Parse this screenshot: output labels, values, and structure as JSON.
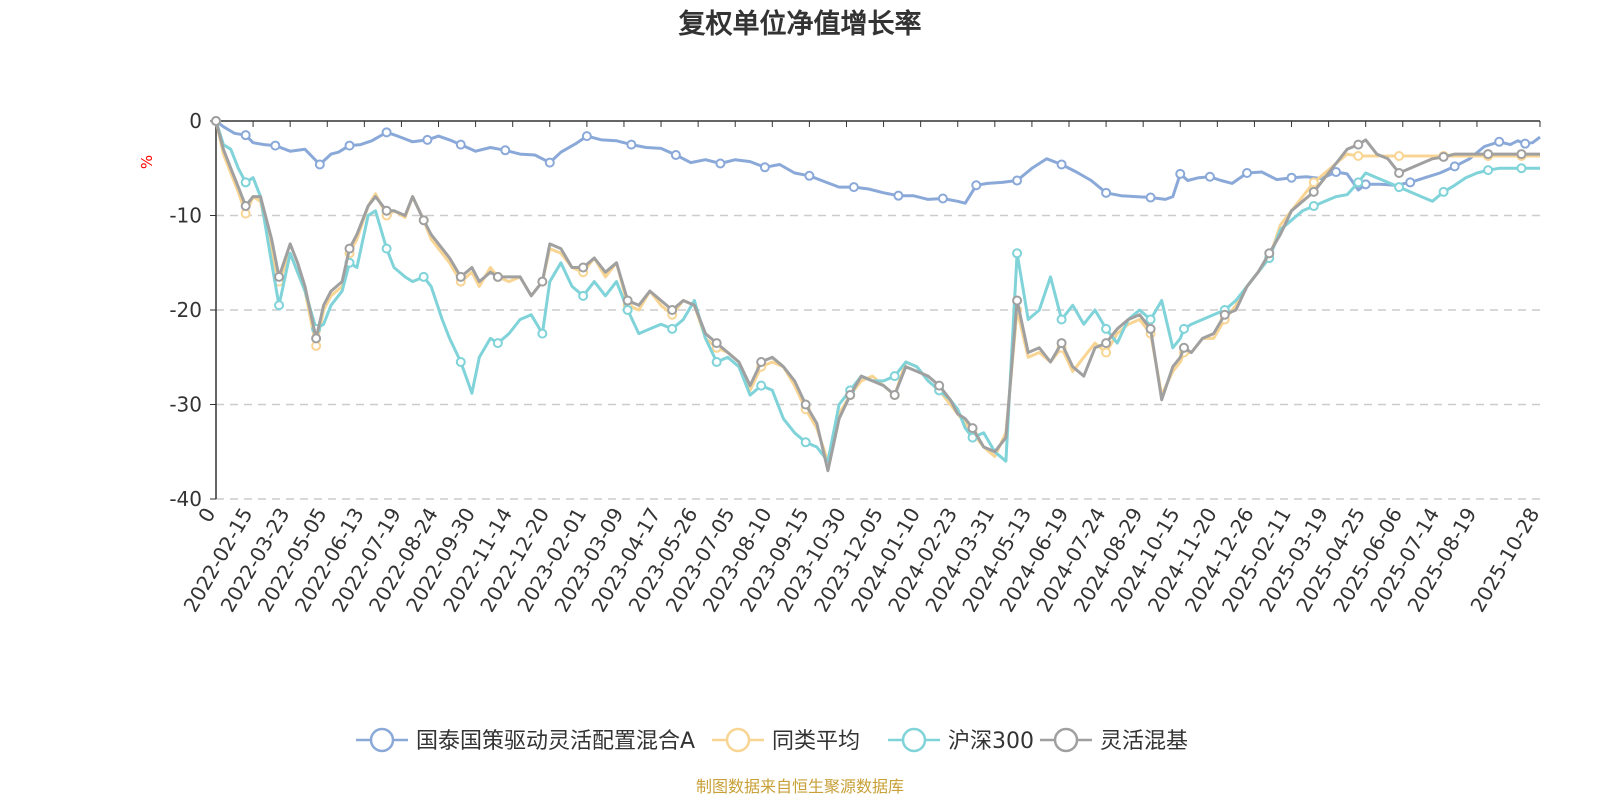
{
  "chart_data": {
    "type": "line",
    "title": "复权单位净值增长率",
    "ylabel": "%",
    "xlabel": "",
    "ylim": [
      -40,
      0
    ],
    "yticks": [
      0,
      -10,
      -20,
      -30,
      -40
    ],
    "grid": "horizontal dashed",
    "legend_position": "bottom-center",
    "source": "制图数据来自恒生聚源数据库",
    "colors": {
      "title": "#333333",
      "axis": "#333333",
      "grid": "#cccccc",
      "unit": "#ff0000",
      "source": "#c8a038"
    },
    "x_tick_labels": [
      "0",
      "2022-02-15",
      "2022-03-23",
      "2022-05-05",
      "2022-06-13",
      "2022-07-19",
      "2022-08-24",
      "2022-09-30",
      "2022-11-14",
      "2022-12-20",
      "2023-02-01",
      "2023-03-09",
      "2023-04-17",
      "2023-05-26",
      "2023-07-05",
      "2023-08-10",
      "2023-09-15",
      "2023-10-30",
      "2023-12-05",
      "2024-01-10",
      "2024-02-23",
      "2024-03-31",
      "2024-05-13",
      "2024-06-19",
      "2024-07-24",
      "2024-08-29",
      "2024-10-15",
      "2024-11-20",
      "2024-12-26",
      "2025-02-11",
      "2025-03-19",
      "2025-04-25",
      "2025-06-06",
      "2025-07-14",
      "2025-08-19",
      "2025-10-28"
    ],
    "x_tick_positions": [
      0,
      1,
      2,
      3,
      4,
      5,
      6,
      7,
      8,
      9,
      10,
      11,
      12,
      13,
      14,
      15,
      16,
      17,
      18,
      19,
      20,
      21,
      22,
      23,
      24,
      25,
      26,
      27,
      28,
      29,
      30,
      31,
      32,
      33,
      34,
      35.7
    ],
    "x_max": 35.7,
    "series": [
      {
        "name": "国泰国策驱动灵活配置混合A",
        "color": "#8aa9d9",
        "x": [
          0,
          0.2,
          0.5,
          0.8,
          1.0,
          1.3,
          1.6,
          2.0,
          2.4,
          2.8,
          3.1,
          3.3,
          3.6,
          3.9,
          4.2,
          4.6,
          4.9,
          5.3,
          5.7,
          6.0,
          6.3,
          6.6,
          7.0,
          7.4,
          7.8,
          8.2,
          8.6,
          9.0,
          9.3,
          9.7,
          10.0,
          10.4,
          10.8,
          11.2,
          11.6,
          12.0,
          12.4,
          12.8,
          13.2,
          13.6,
          14.0,
          14.4,
          14.8,
          15.2,
          15.6,
          16.0,
          16.4,
          16.8,
          17.2,
          17.6,
          18.0,
          18.4,
          18.8,
          19.2,
          19.6,
          20.0,
          20.2,
          20.5,
          20.8,
          21.2,
          21.6,
          22.0,
          22.4,
          22.8,
          23.2,
          23.6,
          24.0,
          24.4,
          24.8,
          25.2,
          25.6,
          25.8,
          26.0,
          26.2,
          26.5,
          26.8,
          27.1,
          27.4,
          27.8,
          28.2,
          28.6,
          29.0,
          29.4,
          29.8,
          30.2,
          30.5,
          30.8,
          31.0,
          31.4,
          31.8,
          32.2,
          32.6,
          33.0,
          33.4,
          33.8,
          34.2,
          34.6,
          34.9,
          35.1,
          35.3,
          35.5,
          35.7
        ],
        "values": [
          0,
          -0.6,
          -1.3,
          -1.5,
          -2.3,
          -2.5,
          -2.6,
          -3.2,
          -3.0,
          -4.6,
          -3.5,
          -3.3,
          -2.6,
          -2.5,
          -2.1,
          -1.2,
          -1.6,
          -2.2,
          -2.0,
          -1.6,
          -2.0,
          -2.5,
          -3.2,
          -2.8,
          -3.1,
          -3.5,
          -3.6,
          -4.4,
          -3.3,
          -2.4,
          -1.6,
          -2.0,
          -2.1,
          -2.5,
          -2.8,
          -2.9,
          -3.6,
          -4.4,
          -4.1,
          -4.5,
          -4.1,
          -4.3,
          -4.9,
          -4.6,
          -5.5,
          -5.8,
          -6.4,
          -7.0,
          -7.0,
          -7.2,
          -7.6,
          -7.9,
          -7.9,
          -8.3,
          -8.2,
          -8.5,
          -8.7,
          -6.8,
          -6.6,
          -6.5,
          -6.3,
          -5.0,
          -4.0,
          -4.6,
          -5.4,
          -6.3,
          -7.6,
          -7.9,
          -8.0,
          -8.1,
          -8.3,
          -8.0,
          -5.6,
          -6.3,
          -6.0,
          -5.9,
          -6.3,
          -6.6,
          -5.5,
          -5.4,
          -6.2,
          -6.0,
          -5.9,
          -6.1,
          -5.4,
          -5.6,
          -7.3,
          -6.7,
          -6.7,
          -6.8,
          -6.5,
          -6.0,
          -5.5,
          -4.8,
          -4.0,
          -2.7,
          -2.2,
          -2.5,
          -2.1,
          -2.4,
          -2.3,
          -1.7
        ]
      },
      {
        "name": "同类平均",
        "color": "#f9d594",
        "x": [
          0,
          0.2,
          0.4,
          0.6,
          0.8,
          1.0,
          1.2,
          1.5,
          1.7,
          2.0,
          2.2,
          2.4,
          2.7,
          2.9,
          3.1,
          3.4,
          3.6,
          3.8,
          4.1,
          4.3,
          4.6,
          4.8,
          5.1,
          5.3,
          5.6,
          5.8,
          6.1,
          6.3,
          6.6,
          6.9,
          7.1,
          7.4,
          7.6,
          7.9,
          8.2,
          8.5,
          8.8,
          9.0,
          9.3,
          9.6,
          9.9,
          10.2,
          10.5,
          10.8,
          11.1,
          11.4,
          11.7,
          12.0,
          12.3,
          12.6,
          12.9,
          13.2,
          13.5,
          13.8,
          14.1,
          14.4,
          14.7,
          15.0,
          15.3,
          15.6,
          15.9,
          16.2,
          16.5,
          16.8,
          17.1,
          17.4,
          17.7,
          18.0,
          18.3,
          18.6,
          18.9,
          19.2,
          19.5,
          19.8,
          20.0,
          20.2,
          20.4,
          20.7,
          21.0,
          21.3,
          21.6,
          21.9,
          22.2,
          22.5,
          22.8,
          23.1,
          23.4,
          23.7,
          24.0,
          24.3,
          24.6,
          24.9,
          25.2,
          25.5,
          25.8,
          26.0,
          26.1,
          26.3,
          26.6,
          26.9,
          27.2,
          27.5,
          27.8,
          28.1,
          28.4,
          28.7,
          29.0,
          29.3,
          29.6,
          29.9,
          30.2,
          30.5,
          30.8,
          31.0,
          31.3,
          31.6,
          31.9,
          32.2,
          32.5,
          32.8,
          33.1,
          33.4,
          33.7,
          34.0,
          34.3,
          34.6,
          34.8,
          35.0,
          35.2,
          35.4,
          35.6,
          35.7
        ],
        "values": [
          0,
          -3.5,
          -5.5,
          -7.5,
          -9.8,
          -8.0,
          -8.5,
          -14.0,
          -17.0,
          -14.0,
          -16.0,
          -18.0,
          -23.8,
          -20.0,
          -18.5,
          -17.5,
          -14.0,
          -12.5,
          -9.0,
          -7.7,
          -10.0,
          -9.5,
          -10.2,
          -8.0,
          -10.5,
          -12.5,
          -14.0,
          -15.0,
          -17.0,
          -16.0,
          -17.5,
          -15.5,
          -16.5,
          -17.0,
          -16.5,
          -18.5,
          -17.0,
          -13.5,
          -14.0,
          -15.5,
          -16.0,
          -14.5,
          -16.5,
          -15.0,
          -19.5,
          -20.0,
          -18.0,
          -19.5,
          -20.5,
          -19.0,
          -19.5,
          -23.0,
          -24.0,
          -24.5,
          -25.5,
          -28.5,
          -26.0,
          -25.5,
          -26.0,
          -28.0,
          -30.5,
          -32.5,
          -36.0,
          -31.0,
          -29.0,
          -27.5,
          -27.0,
          -28.0,
          -29.0,
          -25.5,
          -26.0,
          -27.5,
          -28.5,
          -30.0,
          -31.0,
          -32.0,
          -33.0,
          -34.5,
          -35.5,
          -33.0,
          -20.0,
          -25.0,
          -24.5,
          -25.5,
          -24.0,
          -26.5,
          -25.0,
          -23.5,
          -24.5,
          -22.5,
          -21.5,
          -21.0,
          -22.5,
          -29.0,
          -26.5,
          -25.5,
          -24.5,
          -24.5,
          -23.0,
          -23.0,
          -21.0,
          -19.5,
          -17.5,
          -16.0,
          -14.5,
          -11.0,
          -9.5,
          -8.0,
          -6.5,
          -5.5,
          -4.5,
          -3.5,
          -3.7,
          -3.7,
          -3.7,
          -3.7,
          -3.7,
          -3.7,
          -3.7,
          -3.7,
          -3.7,
          -3.7,
          -3.7,
          -3.7,
          -3.7,
          -3.7,
          -3.7,
          -3.7,
          -3.7,
          -3.7,
          -3.7,
          -3.7
        ]
      },
      {
        "name": "沪深300",
        "color": "#7fd3d9",
        "x": [
          0,
          0.2,
          0.4,
          0.6,
          0.8,
          1.0,
          1.2,
          1.5,
          1.7,
          2.0,
          2.2,
          2.4,
          2.7,
          2.9,
          3.1,
          3.4,
          3.6,
          3.8,
          4.1,
          4.3,
          4.6,
          4.8,
          5.1,
          5.3,
          5.6,
          5.8,
          6.1,
          6.3,
          6.6,
          6.9,
          7.1,
          7.4,
          7.6,
          7.9,
          8.2,
          8.5,
          8.8,
          9.0,
          9.3,
          9.6,
          9.9,
          10.2,
          10.5,
          10.8,
          11.1,
          11.4,
          11.7,
          12.0,
          12.3,
          12.6,
          12.9,
          13.2,
          13.5,
          13.8,
          14.1,
          14.4,
          14.7,
          15.0,
          15.3,
          15.6,
          15.9,
          16.2,
          16.5,
          16.8,
          17.1,
          17.4,
          17.7,
          18.0,
          18.3,
          18.6,
          18.9,
          19.2,
          19.5,
          19.8,
          20.0,
          20.2,
          20.4,
          20.7,
          21.0,
          21.3,
          21.6,
          21.9,
          22.2,
          22.5,
          22.8,
          23.1,
          23.4,
          23.7,
          24.0,
          24.3,
          24.6,
          24.9,
          25.2,
          25.5,
          25.8,
          26.0,
          26.1,
          26.3,
          26.6,
          26.9,
          27.2,
          27.5,
          27.8,
          28.1,
          28.4,
          28.7,
          29.0,
          29.3,
          29.6,
          29.9,
          30.2,
          30.5,
          30.8,
          31.0,
          31.3,
          31.6,
          31.9,
          32.2,
          32.5,
          32.8,
          33.1,
          33.4,
          33.7,
          34.0,
          34.3,
          34.6,
          34.8,
          35.0,
          35.2,
          35.4,
          35.6,
          35.7
        ],
        "values": [
          0,
          -2.5,
          -3.0,
          -5.0,
          -6.5,
          -6.0,
          -8.0,
          -15.0,
          -19.5,
          -14.0,
          -16.0,
          -18.0,
          -22.0,
          -21.5,
          -19.5,
          -18.0,
          -15.0,
          -15.5,
          -10.0,
          -9.5,
          -13.5,
          -15.5,
          -16.5,
          -17.0,
          -16.5,
          -17.5,
          -21.0,
          -23.0,
          -25.5,
          -28.8,
          -25.0,
          -23.0,
          -23.5,
          -22.5,
          -21.0,
          -20.5,
          -22.5,
          -17.0,
          -15.0,
          -17.5,
          -18.5,
          -17.0,
          -18.5,
          -17.0,
          -20.0,
          -22.5,
          -22.0,
          -21.5,
          -22.0,
          -21.0,
          -19.0,
          -23.0,
          -25.5,
          -25.0,
          -26.0,
          -29.0,
          -28.0,
          -28.5,
          -31.5,
          -33.0,
          -34.0,
          -34.5,
          -36.0,
          -30.0,
          -28.5,
          -27.0,
          -27.5,
          -27.5,
          -27.0,
          -25.5,
          -26.0,
          -27.5,
          -28.5,
          -29.5,
          -30.5,
          -32.5,
          -33.5,
          -33.0,
          -35.0,
          -36.0,
          -14.0,
          -21.0,
          -20.0,
          -16.5,
          -21.0,
          -19.5,
          -21.5,
          -20.0,
          -22.0,
          -23.5,
          -21.0,
          -20.0,
          -21.0,
          -19.0,
          -24.0,
          -23.0,
          -22.0,
          -21.5,
          -21.0,
          -20.5,
          -20.0,
          -19.0,
          -17.5,
          -16.0,
          -14.5,
          -11.5,
          -10.5,
          -9.5,
          -9.0,
          -8.5,
          -8.0,
          -7.8,
          -6.5,
          -5.5,
          -6.0,
          -6.5,
          -7.0,
          -7.5,
          -8.0,
          -8.5,
          -7.5,
          -6.8,
          -6.0,
          -5.5,
          -5.2,
          -5.0,
          -5.0,
          -5.0,
          -5.0,
          -5.0,
          -5.0,
          -5.0
        ]
      },
      {
        "name": "灵活混基",
        "color": "#a0a0a0",
        "x": [
          0,
          0.2,
          0.4,
          0.6,
          0.8,
          1.0,
          1.2,
          1.5,
          1.7,
          2.0,
          2.2,
          2.4,
          2.7,
          2.9,
          3.1,
          3.4,
          3.6,
          3.8,
          4.1,
          4.3,
          4.6,
          4.8,
          5.1,
          5.3,
          5.6,
          5.8,
          6.1,
          6.3,
          6.6,
          6.9,
          7.1,
          7.4,
          7.6,
          7.9,
          8.2,
          8.5,
          8.8,
          9.0,
          9.3,
          9.6,
          9.9,
          10.2,
          10.5,
          10.8,
          11.1,
          11.4,
          11.7,
          12.0,
          12.3,
          12.6,
          12.9,
          13.2,
          13.5,
          13.8,
          14.1,
          14.4,
          14.7,
          15.0,
          15.3,
          15.6,
          15.9,
          16.2,
          16.5,
          16.8,
          17.1,
          17.4,
          17.7,
          18.0,
          18.3,
          18.6,
          18.9,
          19.2,
          19.5,
          19.8,
          20.0,
          20.2,
          20.4,
          20.7,
          21.0,
          21.3,
          21.6,
          21.9,
          22.2,
          22.5,
          22.8,
          23.1,
          23.4,
          23.7,
          24.0,
          24.3,
          24.6,
          24.9,
          25.2,
          25.5,
          25.8,
          26.0,
          26.1,
          26.3,
          26.6,
          26.9,
          27.2,
          27.5,
          27.8,
          28.1,
          28.4,
          28.7,
          29.0,
          29.3,
          29.6,
          29.9,
          30.2,
          30.5,
          30.8,
          31.0,
          31.3,
          31.6,
          31.9,
          32.2,
          32.5,
          32.8,
          33.1,
          33.4,
          33.7,
          34.0,
          34.3,
          34.6,
          34.8,
          35.0,
          35.2,
          35.4,
          35.6,
          35.7
        ],
        "values": [
          0,
          -3.0,
          -5.0,
          -7.0,
          -9.0,
          -8.0,
          -8.0,
          -12.5,
          -16.5,
          -13.0,
          -15.0,
          -17.5,
          -23.0,
          -19.5,
          -18.0,
          -17.0,
          -13.5,
          -12.0,
          -9.0,
          -8.0,
          -9.5,
          -9.5,
          -10.0,
          -8.0,
          -10.5,
          -12.0,
          -13.5,
          -14.5,
          -16.5,
          -15.5,
          -17.0,
          -16.0,
          -16.5,
          -16.5,
          -16.5,
          -18.5,
          -17.0,
          -13.0,
          -13.5,
          -15.5,
          -15.5,
          -14.5,
          -16.0,
          -15.0,
          -19.0,
          -19.5,
          -18.0,
          -19.0,
          -20.0,
          -19.0,
          -19.5,
          -22.5,
          -23.5,
          -24.5,
          -25.5,
          -28.0,
          -25.5,
          -25.0,
          -26.0,
          -27.5,
          -30.0,
          -32.0,
          -37.0,
          -31.5,
          -29.0,
          -27.0,
          -27.5,
          -28.0,
          -29.0,
          -26.0,
          -26.5,
          -27.0,
          -28.0,
          -29.5,
          -31.0,
          -31.5,
          -32.5,
          -34.5,
          -35.0,
          -33.5,
          -19.0,
          -24.5,
          -24.0,
          -25.5,
          -23.5,
          -26.0,
          -27.0,
          -24.0,
          -23.5,
          -22.0,
          -21.0,
          -20.5,
          -22.0,
          -29.5,
          -26.0,
          -25.0,
          -24.0,
          -24.5,
          -23.0,
          -22.5,
          -20.5,
          -20.0,
          -17.5,
          -16.0,
          -14.0,
          -12.0,
          -9.5,
          -8.5,
          -7.5,
          -6.0,
          -4.5,
          -3.0,
          -2.5,
          -2.0,
          -3.5,
          -4.0,
          -5.5,
          -5.0,
          -4.5,
          -4.0,
          -3.8,
          -3.5,
          -3.5,
          -3.5,
          -3.5,
          -3.5,
          -3.5,
          -3.5,
          -3.5,
          -3.5,
          -3.5,
          -3.5
        ]
      }
    ]
  }
}
